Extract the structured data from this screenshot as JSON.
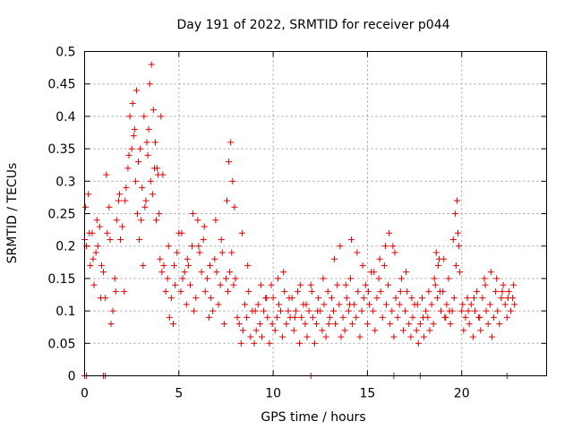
{
  "chart_data": {
    "type": "scatter",
    "title": "Day 191 of 2022, SRMTID for receiver p044",
    "xlabel": "GPS time / hours",
    "ylabel": "SRMTID / TECUs",
    "xlim": [
      0,
      24.5
    ],
    "ylim": [
      0,
      0.5
    ],
    "grid": true,
    "marker": "+",
    "color": "#e00000",
    "x_ticks": [
      0,
      5,
      10,
      15,
      20
    ],
    "x_tick_labels": [
      "0",
      "5",
      "10",
      "15",
      "20"
    ],
    "y_ticks": [
      0,
      0.05,
      0.1,
      0.15,
      0.2,
      0.25,
      0.3,
      0.35,
      0.4,
      0.45,
      0.5
    ],
    "y_tick_labels": [
      "0",
      "0.05",
      "0.1",
      "0.15",
      "0.2",
      "0.25",
      "0.3",
      "0.35",
      "0.4",
      "0.45",
      "0.5"
    ],
    "series": [
      {
        "name": "p044",
        "x": [
          0.0,
          0.1,
          0.2,
          0.3,
          0.4,
          0.5,
          0.6,
          0.7,
          0.8,
          0.9,
          1.0,
          1.1,
          1.2,
          1.3,
          1.4,
          1.5,
          1.6,
          1.7,
          1.8,
          1.9,
          2.0,
          2.1,
          2.2,
          2.3,
          2.4,
          2.5,
          2.6,
          2.7,
          2.8,
          2.9,
          3.0,
          3.1,
          3.2,
          3.3,
          3.4,
          3.5,
          3.6,
          3.7,
          3.8,
          3.9,
          4.0,
          4.1,
          4.2,
          4.3,
          4.4,
          4.5,
          4.6,
          4.7,
          4.8,
          4.9,
          5.0,
          5.1,
          5.2,
          5.3,
          5.4,
          5.5,
          5.6,
          5.7,
          5.8,
          5.9,
          6.0,
          6.1,
          6.2,
          6.3,
          6.4,
          6.5,
          6.6,
          6.7,
          6.8,
          6.9,
          7.0,
          7.1,
          7.2,
          7.3,
          7.4,
          7.5,
          7.6,
          7.7,
          7.8,
          7.9,
          8.0,
          8.1,
          8.2,
          8.3,
          8.4,
          8.5,
          8.6,
          8.7,
          8.8,
          8.9,
          9.0,
          9.1,
          9.2,
          9.3,
          9.4,
          9.5,
          9.6,
          9.7,
          9.8,
          9.9,
          10.0,
          10.1,
          10.2,
          10.3,
          10.4,
          10.5,
          10.6,
          10.7,
          10.8,
          10.9,
          11.0,
          11.1,
          11.2,
          11.3,
          11.4,
          11.5,
          11.6,
          11.7,
          11.8,
          11.9,
          12.0,
          12.1,
          12.2,
          12.3,
          12.4,
          12.5,
          12.6,
          12.7,
          12.8,
          12.9,
          13.0,
          13.1,
          13.2,
          13.3,
          13.4,
          13.5,
          13.6,
          13.7,
          13.8,
          13.9,
          14.0,
          14.1,
          14.2,
          14.3,
          14.4,
          14.5,
          14.6,
          14.7,
          14.8,
          14.9,
          15.0,
          15.1,
          15.2,
          15.3,
          15.4,
          15.5,
          15.6,
          15.7,
          15.8,
          15.9,
          16.0,
          16.1,
          16.2,
          16.3,
          16.4,
          16.5,
          16.6,
          16.7,
          16.8,
          16.9,
          17.0,
          17.1,
          17.2,
          17.3,
          17.4,
          17.5,
          17.6,
          17.7,
          17.8,
          17.9,
          18.0,
          18.1,
          18.2,
          18.3,
          18.4,
          18.5,
          18.6,
          18.7,
          18.8,
          18.9,
          19.0,
          19.1,
          19.2,
          19.3,
          19.4,
          19.5,
          19.6,
          19.7,
          19.8,
          19.9,
          20.0,
          20.1,
          20.2,
          20.3,
          20.4,
          20.5,
          20.6,
          20.7,
          20.8,
          20.9,
          21.0,
          21.1,
          21.2,
          21.3,
          21.4,
          21.5,
          21.6,
          21.7,
          21.8,
          21.9,
          22.0,
          22.1,
          22.2,
          22.3,
          22.4,
          22.5,
          22.6,
          22.7,
          22.8,
          0.05,
          0.25,
          0.45,
          0.65,
          0.85,
          1.15,
          1.35,
          1.65,
          1.85,
          2.15,
          2.35,
          2.55,
          2.65,
          2.75,
          2.85,
          2.95,
          3.05,
          3.15,
          3.25,
          3.35,
          3.45,
          3.55,
          3.65,
          3.75,
          3.85,
          3.95,
          4.05,
          4.15,
          4.45,
          4.75,
          5.15,
          5.45,
          5.75,
          6.05,
          6.35,
          6.65,
          6.95,
          7.25,
          7.55,
          7.65,
          7.75,
          7.85,
          7.95,
          8.35,
          8.65,
          9.05,
          9.35,
          9.65,
          9.95,
          10.25,
          10.55,
          10.85,
          11.15,
          11.45,
          11.75,
          12.05,
          12.35,
          12.65,
          12.95,
          13.25,
          13.55,
          13.85,
          14.05,
          14.15,
          14.45,
          14.75,
          15.05,
          15.35,
          15.65,
          15.95,
          16.15,
          16.35,
          16.45,
          16.75,
          17.05,
          17.35,
          17.65,
          17.95,
          18.25,
          18.55,
          18.65,
          18.75,
          18.85,
          19.05,
          19.15,
          19.35,
          19.55,
          19.65,
          19.75,
          19.85,
          20.05,
          20.35,
          20.65,
          20.95,
          21.25,
          21.55,
          21.85,
          22.15,
          22.45,
          22.75,
          0.0,
          0.1,
          1.0,
          1.1,
          12.0,
          16.4,
          17.8,
          22.4
        ],
        "y": [
          0.21,
          0.2,
          0.28,
          0.17,
          0.22,
          0.14,
          0.19,
          0.2,
          0.23,
          0.17,
          0.16,
          0.12,
          0.22,
          0.26,
          0.08,
          0.1,
          0.15,
          0.24,
          0.27,
          0.21,
          0.23,
          0.13,
          0.29,
          0.32,
          0.4,
          0.35,
          0.37,
          0.3,
          0.25,
          0.21,
          0.24,
          0.17,
          0.26,
          0.36,
          0.38,
          0.3,
          0.28,
          0.32,
          0.24,
          0.31,
          0.18,
          0.16,
          0.17,
          0.13,
          0.15,
          0.09,
          0.12,
          0.08,
          0.14,
          0.19,
          0.22,
          0.13,
          0.15,
          0.16,
          0.11,
          0.17,
          0.14,
          0.2,
          0.1,
          0.12,
          0.24,
          0.19,
          0.16,
          0.21,
          0.13,
          0.15,
          0.09,
          0.12,
          0.1,
          0.18,
          0.16,
          0.11,
          0.14,
          0.19,
          0.08,
          0.15,
          0.13,
          0.16,
          0.19,
          0.14,
          0.15,
          0.09,
          0.08,
          0.05,
          0.07,
          0.11,
          0.09,
          0.13,
          0.06,
          0.1,
          0.05,
          0.07,
          0.11,
          0.08,
          0.06,
          0.1,
          0.12,
          0.09,
          0.05,
          0.14,
          0.12,
          0.07,
          0.09,
          0.11,
          0.1,
          0.06,
          0.13,
          0.08,
          0.1,
          0.09,
          0.12,
          0.07,
          0.1,
          0.13,
          0.05,
          0.09,
          0.11,
          0.08,
          0.06,
          0.1,
          0.14,
          0.09,
          0.05,
          0.08,
          0.12,
          0.1,
          0.07,
          0.11,
          0.06,
          0.13,
          0.09,
          0.12,
          0.1,
          0.08,
          0.14,
          0.11,
          0.06,
          0.09,
          0.07,
          0.12,
          0.1,
          0.15,
          0.08,
          0.11,
          0.09,
          0.13,
          0.06,
          0.1,
          0.12,
          0.14,
          0.08,
          0.11,
          0.16,
          0.1,
          0.07,
          0.12,
          0.15,
          0.13,
          0.09,
          0.17,
          0.11,
          0.14,
          0.08,
          0.1,
          0.06,
          0.12,
          0.09,
          0.11,
          0.15,
          0.07,
          0.1,
          0.13,
          0.08,
          0.06,
          0.09,
          0.11,
          0.07,
          0.05,
          0.08,
          0.12,
          0.06,
          0.1,
          0.09,
          0.07,
          0.11,
          0.08,
          0.14,
          0.12,
          0.18,
          0.1,
          0.13,
          0.09,
          0.11,
          0.15,
          0.08,
          0.1,
          0.12,
          0.17,
          0.22,
          0.16,
          0.1,
          0.07,
          0.09,
          0.12,
          0.08,
          0.11,
          0.06,
          0.1,
          0.13,
          0.09,
          0.07,
          0.12,
          0.15,
          0.1,
          0.08,
          0.11,
          0.06,
          0.09,
          0.13,
          0.1,
          0.08,
          0.12,
          0.14,
          0.11,
          0.09,
          0.13,
          0.1,
          0.12,
          0.11,
          0.26,
          0.22,
          0.18,
          0.24,
          0.12,
          0.31,
          0.21,
          0.13,
          0.28,
          0.27,
          0.34,
          0.42,
          0.38,
          0.44,
          0.33,
          0.35,
          0.29,
          0.4,
          0.27,
          0.34,
          0.45,
          0.48,
          0.41,
          0.36,
          0.32,
          0.25,
          0.4,
          0.31,
          0.2,
          0.17,
          0.22,
          0.18,
          0.25,
          0.2,
          0.23,
          0.17,
          0.24,
          0.21,
          0.27,
          0.33,
          0.36,
          0.3,
          0.26,
          0.22,
          0.17,
          0.1,
          0.14,
          0.12,
          0.08,
          0.15,
          0.16,
          0.12,
          0.09,
          0.14,
          0.11,
          0.13,
          0.1,
          0.15,
          0.08,
          0.18,
          0.2,
          0.14,
          0.11,
          0.21,
          0.19,
          0.17,
          0.13,
          0.16,
          0.18,
          0.2,
          0.22,
          0.2,
          0.19,
          0.13,
          0.16,
          0.12,
          0.11,
          0.09,
          0.13,
          0.15,
          0.19,
          0.17,
          0.13,
          0.18,
          0.09,
          0.1,
          0.21,
          0.25,
          0.27,
          0.2,
          0.11,
          0.1,
          0.12,
          0.09,
          0.14,
          0.16,
          0.15,
          0.13,
          0.12,
          0.14,
          0.0,
          0.0,
          0.0,
          0.0,
          0.0,
          0.0,
          0.0,
          0.0
        ]
      }
    ]
  }
}
